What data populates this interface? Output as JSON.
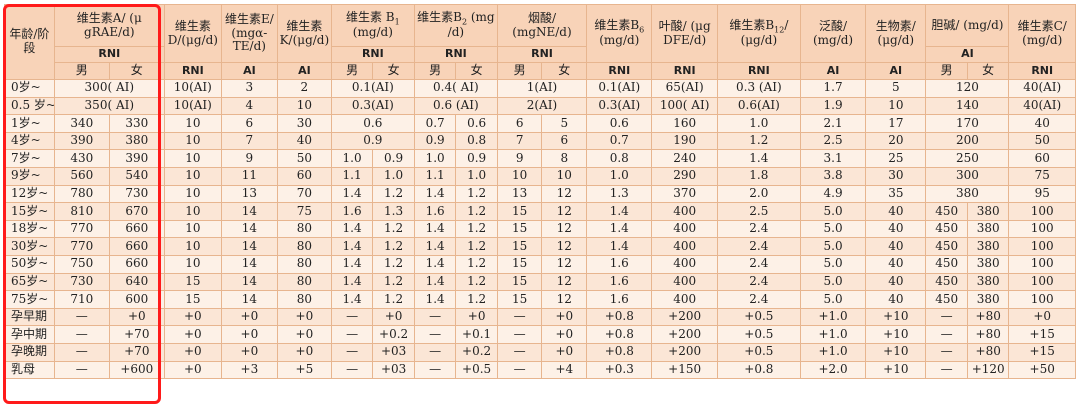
{
  "header": {
    "age": "年龄/阶段",
    "vitA": "维生素A/ (μ gRAE/d)",
    "vitD": "维生素D/(μg/d)",
    "vitE": "维生素E/ (mgα-TE/d)",
    "vitK": "维生素 K/(μg/d)",
    "vitB1": "维生素 B",
    "vitB1_sub": "1",
    "vitB1_unit": "(mg/d)",
    "vitB2": "维生素B",
    "vitB2_sub": "2",
    "vitB2_unit": " (mg /d)",
    "niacin": "烟酸/ (mgNE/d)",
    "vitB6": "维生素B",
    "vitB6_sub": "6",
    "vitB6_unit": "(mg/d)",
    "folate": "叶酸/ (μg DFE/d)",
    "vitB12": "维生素B",
    "vitB12_sub": "12",
    "vitB12_unit": "/ (μg/d)",
    "panto": "泛酸/ (mg/d)",
    "biotin": "生物素/ (μg/d)",
    "choline": "胆碱/ (mg/d)",
    "vitC": "维生素C/ (mg/d)",
    "rni": "RNI",
    "ai": "AI",
    "male": "男",
    "female": "女"
  },
  "rows": [
    {
      "age": "0岁~",
      "a": "300( AI)",
      "d": "10(AI)",
      "e": "3",
      "k": "2",
      "b1": "0.1(AI)",
      "b2": "0.4( AI)",
      "niacin": "1(AI)",
      "b6": "0.1(AI)",
      "folate": "65(AI)",
      "b12": "0.3 (AI)",
      "panto": "1.7",
      "biotin": "5",
      "choline": "120",
      "c": "40(AI)"
    },
    {
      "age": "0.5 岁~",
      "a": "350( AI)",
      "d": "10(AI)",
      "e": "4",
      "k": "10",
      "b1": "0.3(AI)",
      "b2": "0.6 (AI)",
      "niacin": "2(AI)",
      "b6": "0.3(AI)",
      "folate": "100( AI)",
      "b12": "0.6(AI)",
      "panto": "1.9",
      "biotin": "10",
      "choline": "140",
      "c": "40(AI)"
    },
    {
      "age": "1岁~",
      "a": [
        "340",
        "330"
      ],
      "d": "10",
      "e": "6",
      "k": "30",
      "b1": "0.6",
      "b2": [
        "0.7",
        "0.6"
      ],
      "niacin": [
        "6",
        "5"
      ],
      "b6": "0.6",
      "folate": "160",
      "b12": "1.0",
      "panto": "2.1",
      "biotin": "17",
      "choline": "170",
      "c": "40"
    },
    {
      "age": "4岁~",
      "a": [
        "390",
        "380"
      ],
      "d": "10",
      "e": "7",
      "k": "40",
      "b1": "0.9",
      "b2": [
        "0.9",
        "0.8"
      ],
      "niacin": [
        "7",
        "6"
      ],
      "b6": "0.7",
      "folate": "190",
      "b12": "1.2",
      "panto": "2.5",
      "biotin": "20",
      "choline": "200",
      "c": "50"
    },
    {
      "age": "7岁~",
      "a": [
        "430",
        "390"
      ],
      "d": "10",
      "e": "9",
      "k": "50",
      "b1": [
        "1.0",
        "0.9"
      ],
      "b2": [
        "1.0",
        "0.9"
      ],
      "niacin": [
        "9",
        "8"
      ],
      "b6": "0.8",
      "folate": "240",
      "b12": "1.4",
      "panto": "3.1",
      "biotin": "25",
      "choline": "250",
      "c": "60"
    },
    {
      "age": "9岁~",
      "a": [
        "560",
        "540"
      ],
      "d": "10",
      "e": "11",
      "k": "60",
      "b1": [
        "1.1",
        "1.0"
      ],
      "b2": [
        "1.1",
        "1.0"
      ],
      "niacin": [
        "10",
        "10"
      ],
      "b6": "1.0",
      "folate": "290",
      "b12": "1.8",
      "panto": "3.8",
      "biotin": "30",
      "choline": "300",
      "c": "75"
    },
    {
      "age": "12岁~",
      "a": [
        "780",
        "730"
      ],
      "d": "10",
      "e": "13",
      "k": "70",
      "b1": [
        "1.4",
        "1.2"
      ],
      "b2": [
        "1.4",
        "1.2"
      ],
      "niacin": [
        "13",
        "12"
      ],
      "b6": "1.3",
      "folate": "370",
      "b12": "2.0",
      "panto": "4.9",
      "biotin": "35",
      "choline": "380",
      "c": "95"
    },
    {
      "age": "15岁~",
      "a": [
        "810",
        "670"
      ],
      "d": "10",
      "e": "14",
      "k": "75",
      "b1": [
        "1.6",
        "1.3"
      ],
      "b2": [
        "1.6",
        "1.2"
      ],
      "niacin": [
        "15",
        "12"
      ],
      "b6": "1.4",
      "folate": "400",
      "b12": "2.5",
      "panto": "5.0",
      "biotin": "40",
      "choline": [
        "450",
        "380"
      ],
      "c": "100"
    },
    {
      "age": "18岁~",
      "a": [
        "770",
        "660"
      ],
      "d": "10",
      "e": "14",
      "k": "80",
      "b1": [
        "1.4",
        "1.2"
      ],
      "b2": [
        "1.4",
        "1.2"
      ],
      "niacin": [
        "15",
        "12"
      ],
      "b6": "1.4",
      "folate": "400",
      "b12": "2.4",
      "panto": "5.0",
      "biotin": "40",
      "choline": [
        "450",
        "380"
      ],
      "c": "100"
    },
    {
      "age": "30岁~",
      "a": [
        "770",
        "660"
      ],
      "d": "10",
      "e": "14",
      "k": "80",
      "b1": [
        "1.4",
        "1.2"
      ],
      "b2": [
        "1.4",
        "1.2"
      ],
      "niacin": [
        "15",
        "12"
      ],
      "b6": "1.4",
      "folate": "400",
      "b12": "2.4",
      "panto": "5.0",
      "biotin": "40",
      "choline": [
        "450",
        "380"
      ],
      "c": "100"
    },
    {
      "age": "50岁~",
      "a": [
        "750",
        "660"
      ],
      "d": "10",
      "e": "14",
      "k": "80",
      "b1": [
        "1.4",
        "1.2"
      ],
      "b2": [
        "1.4",
        "1.2"
      ],
      "niacin": [
        "15",
        "12"
      ],
      "b6": "1.6",
      "folate": "400",
      "b12": "2.4",
      "panto": "5.0",
      "biotin": "40",
      "choline": [
        "450",
        "380"
      ],
      "c": "100"
    },
    {
      "age": "65岁~",
      "a": [
        "730",
        "640"
      ],
      "d": "15",
      "e": "14",
      "k": "80",
      "b1": [
        "1.4",
        "1.2"
      ],
      "b2": [
        "1.4",
        "1.2"
      ],
      "niacin": [
        "15",
        "12"
      ],
      "b6": "1.6",
      "folate": "400",
      "b12": "2.4",
      "panto": "5.0",
      "biotin": "40",
      "choline": [
        "450",
        "380"
      ],
      "c": "100"
    },
    {
      "age": "75岁~",
      "a": [
        "710",
        "600"
      ],
      "d": "15",
      "e": "14",
      "k": "80",
      "b1": [
        "1.4",
        "1.2"
      ],
      "b2": [
        "1.4",
        "1.2"
      ],
      "niacin": [
        "15",
        "12"
      ],
      "b6": "1.6",
      "folate": "400",
      "b12": "2.4",
      "panto": "5.0",
      "biotin": "40",
      "choline": [
        "450",
        "380"
      ],
      "c": "100"
    },
    {
      "age": "孕早期",
      "a": [
        "—",
        "+0"
      ],
      "d": "+0",
      "e": "+0",
      "k": "+0",
      "b1": [
        "—",
        "+0"
      ],
      "b2": [
        "—",
        "+0"
      ],
      "niacin": [
        "—",
        "+0"
      ],
      "b6": "+0.8",
      "folate": "+200",
      "b12": "+0.5",
      "panto": "+1.0",
      "biotin": "+10",
      "choline": [
        "—",
        "+80"
      ],
      "c": "+0"
    },
    {
      "age": "孕中期",
      "a": [
        "—",
        "+70"
      ],
      "d": "+0",
      "e": "+0",
      "k": "+0",
      "b1": [
        "—",
        "+0.2"
      ],
      "b2": [
        "—",
        "+0.1"
      ],
      "niacin": [
        "—",
        "+0"
      ],
      "b6": "+0.8",
      "folate": "+200",
      "b12": "+0.5",
      "panto": "+1.0",
      "biotin": "+10",
      "choline": [
        "—",
        "+80"
      ],
      "c": "+15"
    },
    {
      "age": "孕晚期",
      "a": [
        "—",
        "+70"
      ],
      "d": "+0",
      "e": "+0",
      "k": "+0",
      "b1": [
        "—",
        "+03"
      ],
      "b2": [
        "—",
        "+0.2"
      ],
      "niacin": [
        "—",
        "+0"
      ],
      "b6": "+0.8",
      "folate": "+200",
      "b12": "+0.5",
      "panto": "+1.0",
      "biotin": "+10",
      "choline": [
        "—",
        "+80"
      ],
      "c": "+15"
    },
    {
      "age": "乳母",
      "a": [
        "—",
        "+600"
      ],
      "d": "+0",
      "e": "+3",
      "k": "+5",
      "b1": [
        "—",
        "+03"
      ],
      "b2": [
        "—",
        "+0.5"
      ],
      "niacin": [
        "—",
        "+4"
      ],
      "b6": "+0.3",
      "folate": "+150",
      "b12": "+0.8",
      "panto": "+2.0",
      "biotin": "+10",
      "choline": [
        "—",
        "+120"
      ],
      "c": "+50"
    }
  ]
}
